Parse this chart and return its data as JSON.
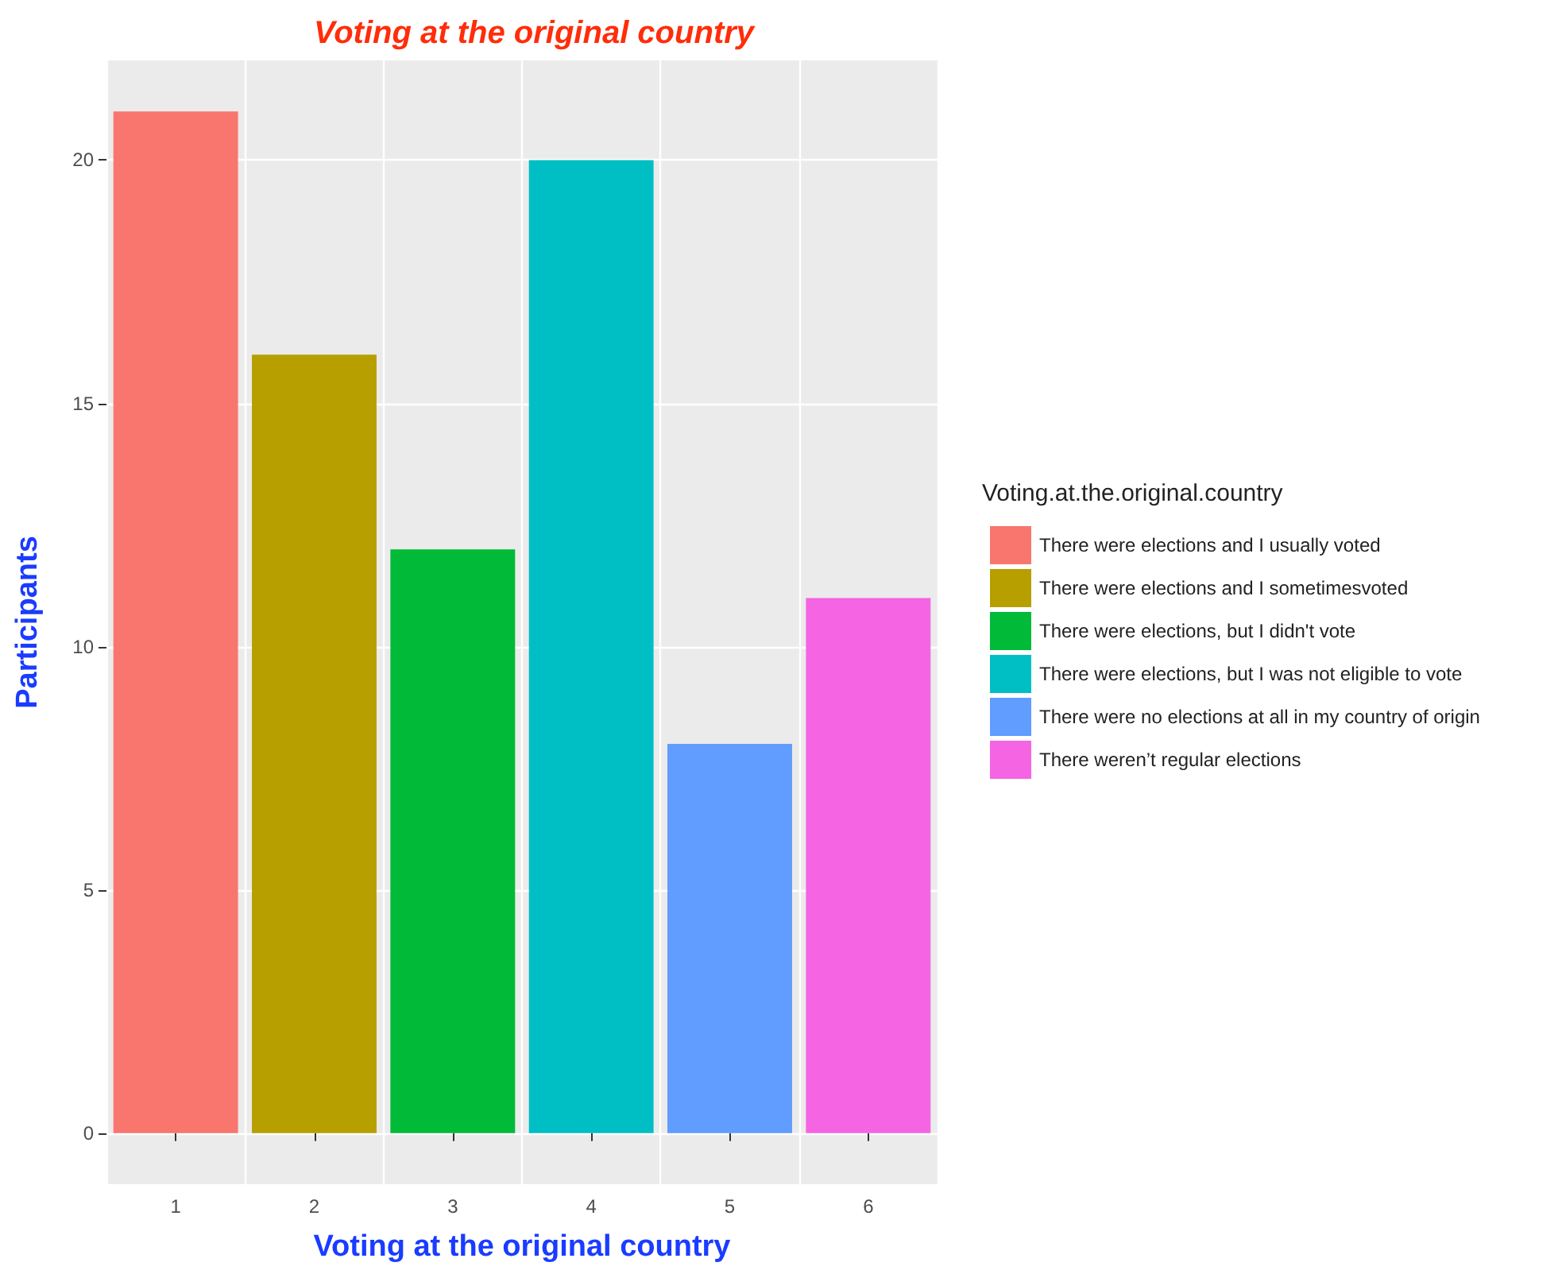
{
  "chart_data": {
    "type": "bar",
    "title": "Voting at the original country",
    "xlabel": "Voting at the original country",
    "ylabel": "Participants",
    "legend_title": "Voting.at.the.original.country",
    "categories": [
      "1",
      "2",
      "3",
      "4",
      "5",
      "6"
    ],
    "series": [
      {
        "name": "There were elections and I usually voted",
        "color": "#f8766d",
        "values": [
          21,
          null,
          null,
          null,
          null,
          null
        ]
      },
      {
        "name": "There were elections and I sometimesvoted",
        "color": "#b79f00",
        "values": [
          null,
          16,
          null,
          null,
          null,
          null
        ]
      },
      {
        "name": "There were elections, but I didn't vote",
        "color": "#00ba38",
        "values": [
          null,
          null,
          12,
          null,
          null,
          null
        ]
      },
      {
        "name": "There were elections, but I was not eligible to vote",
        "color": "#00bfc4",
        "values": [
          null,
          null,
          null,
          20,
          null,
          null
        ]
      },
      {
        "name": "There were no elections at all in my country of origin",
        "color": "#619cff",
        "values": [
          null,
          null,
          null,
          null,
          8,
          null
        ]
      },
      {
        "name": "There weren’t regular elections",
        "color": "#f564e3",
        "values": [
          null,
          null,
          null,
          null,
          null,
          11
        ]
      }
    ],
    "ylim": [
      -1.05,
      22.05
    ],
    "yticks": [
      0,
      5,
      10,
      15,
      20
    ],
    "grid": true,
    "legend": "right"
  }
}
